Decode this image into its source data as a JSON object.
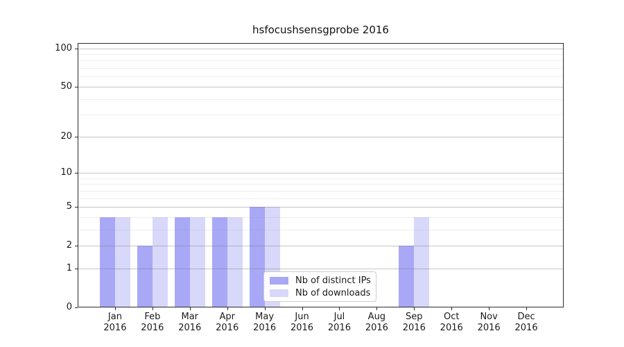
{
  "figure": {
    "title": "hsfocushsensgprobe 2016"
  },
  "legend": {
    "items": [
      {
        "label": "Nb of distinct IPs",
        "color": "#a8a8f6"
      },
      {
        "label": "Nb of downloads",
        "color": "#d8d8fa"
      }
    ]
  },
  "chart_data": {
    "type": "bar",
    "title": "hsfocushsensgprobe 2016",
    "categories": [
      "Jan 2016",
      "Feb 2016",
      "Mar 2016",
      "Apr 2016",
      "May 2016",
      "Jun 2016",
      "Jul 2016",
      "Aug 2016",
      "Sep 2016",
      "Oct 2016",
      "Nov 2016",
      "Dec 2016"
    ],
    "series": [
      {
        "name": "Nb of distinct IPs",
        "color": "#a8a8f6",
        "values": [
          4,
          2,
          4,
          4,
          5,
          0,
          0,
          0,
          2,
          0,
          0,
          0
        ]
      },
      {
        "name": "Nb of downloads",
        "color": "#d8d8fa",
        "values": [
          4,
          4,
          4,
          4,
          5,
          0,
          0,
          0,
          4,
          0,
          0,
          0
        ]
      }
    ],
    "xlabel": "",
    "ylabel": "",
    "yscale": "log1p",
    "y_ticks": [
      0,
      1,
      2,
      5,
      10,
      20,
      50,
      100
    ],
    "y_minor_gridlines": [
      3,
      4,
      6,
      7,
      8,
      9,
      30,
      40,
      60,
      70,
      80,
      90
    ],
    "ylim": [
      0,
      110
    ],
    "grid": true,
    "legend_position": "lower center"
  }
}
